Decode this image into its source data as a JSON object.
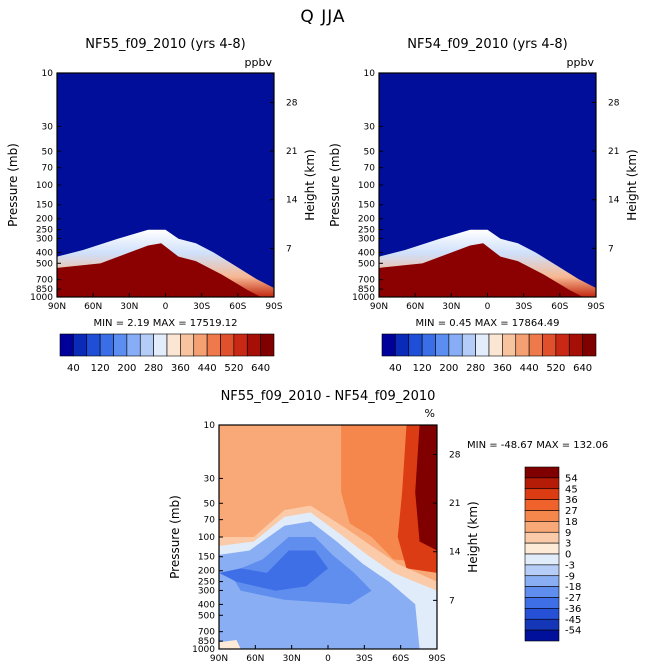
{
  "page_title": "Q JJA",
  "chart_data": [
    {
      "type": "heatmap",
      "title": "NF55_f09_2010 (yrs 4-8)",
      "units": "ppbv",
      "xlabel": "",
      "ylabel": "Pressure (mb)",
      "ylabel_right": "Height (km)",
      "x_ticks": [
        "90N",
        "60N",
        "30N",
        "0",
        "30S",
        "60S",
        "90S"
      ],
      "y_ticks": [
        "10",
        "30",
        "50",
        "70",
        "100",
        "150",
        "200",
        "250",
        "300",
        "400",
        "500",
        "700",
        "850",
        "1000"
      ],
      "height_ticks": [
        "28",
        "21",
        "14",
        "7"
      ],
      "stats": {
        "min_label": "MIN =",
        "min": "2.19",
        "max_label": "MAX =",
        "max": "17519.12"
      },
      "colorbar_labels": [
        "40",
        "120",
        "200",
        "280",
        "360",
        "440",
        "520",
        "640"
      ]
    },
    {
      "type": "heatmap",
      "title": "NF54_f09_2010 (yrs 4-8)",
      "units": "ppbv",
      "xlabel": "",
      "ylabel": "Pressure (mb)",
      "ylabel_right": "Height (km)",
      "x_ticks": [
        "90N",
        "60N",
        "30N",
        "0",
        "30S",
        "60S",
        "90S"
      ],
      "y_ticks": [
        "10",
        "30",
        "50",
        "70",
        "100",
        "150",
        "200",
        "250",
        "300",
        "400",
        "500",
        "700",
        "850",
        "1000"
      ],
      "height_ticks": [
        "28",
        "21",
        "14",
        "7"
      ],
      "stats": {
        "min_label": "MIN =",
        "min": "0.45",
        "max_label": "MAX =",
        "max": "17864.49"
      },
      "colorbar_labels": [
        "40",
        "120",
        "200",
        "280",
        "360",
        "440",
        "520",
        "640"
      ]
    },
    {
      "type": "heatmap",
      "title": "NF55_f09_2010 - NF54_f09_2010",
      "units": "%",
      "xlabel": "",
      "ylabel": "Pressure (mb)",
      "ylabel_right": "Height (km)",
      "x_ticks": [
        "90N",
        "60N",
        "30N",
        "0",
        "30S",
        "60S",
        "90S"
      ],
      "y_ticks": [
        "10",
        "30",
        "50",
        "70",
        "100",
        "150",
        "200",
        "250",
        "300",
        "400",
        "500",
        "700",
        "850",
        "1000"
      ],
      "height_ticks": [
        "28",
        "21",
        "14",
        "7"
      ],
      "stats": {
        "min_label": "MIN =",
        "min": "-48.67",
        "max_label": "MAX =",
        "max": "132.06"
      },
      "colorbar_labels": [
        "54",
        "45",
        "36",
        "27",
        "18",
        "9",
        "3",
        "0",
        "-3",
        "-9",
        "-18",
        "-27",
        "-36",
        "-45",
        "-54"
      ]
    }
  ],
  "colors": {
    "abs_scale": [
      "#00009a",
      "#0a2ab8",
      "#1f4fd6",
      "#3a6ee6",
      "#5b8ef0",
      "#86adf5",
      "#b3cdf8",
      "#e2ecfb",
      "#fbe6d4",
      "#f8c4a0",
      "#f4a072",
      "#ee7a4c",
      "#e0502c",
      "#c82814",
      "#a60f06",
      "#800000"
    ],
    "diff_scale": [
      "#800000",
      "#b41c08",
      "#dc3c14",
      "#f0622c",
      "#f6874c",
      "#f9a978",
      "#fbcaa8",
      "#fdebd8",
      "#e1ecfb",
      "#b6cdf7",
      "#8aaef3",
      "#5f8eee",
      "#3f6fe6",
      "#2650d6",
      "#1636b8",
      "#00109a"
    ],
    "plume_high": "#8b0000",
    "background_low": "#000e99"
  }
}
